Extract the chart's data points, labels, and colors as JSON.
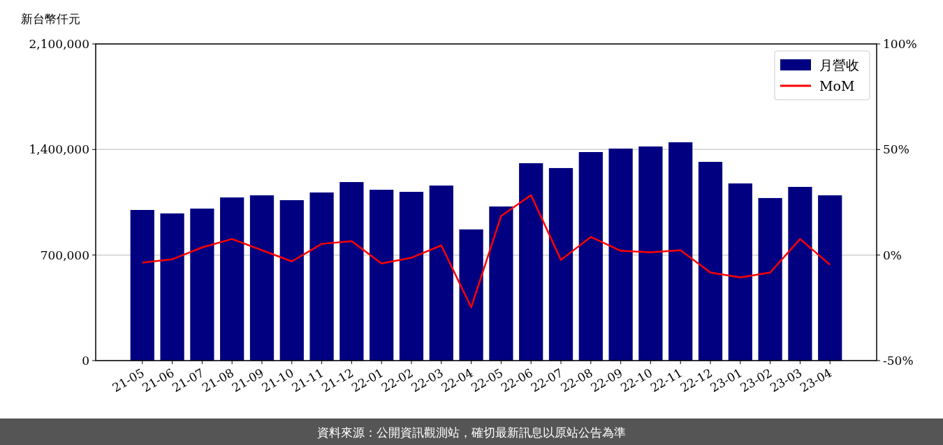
{
  "chart_data": {
    "type": "bar",
    "ylabel": "新台幣仟元",
    "categories": [
      "21-05",
      "21-06",
      "21-07",
      "21-08",
      "21-09",
      "21-10",
      "21-11",
      "21-12",
      "22-01",
      "22-02",
      "22-03",
      "22-04",
      "22-05",
      "22-06",
      "22-07",
      "22-08",
      "22-09",
      "22-10",
      "22-11",
      "22-12",
      "23-01",
      "23-02",
      "23-03",
      "23-04"
    ],
    "series": [
      {
        "name": "月營收",
        "color": "#000080",
        "values": [
          999000,
          976000,
          1008000,
          1082000,
          1096000,
          1064000,
          1115000,
          1184000,
          1133000,
          1119000,
          1161000,
          870000,
          1022000,
          1309000,
          1277000,
          1383000,
          1406000,
          1420000,
          1448000,
          1318000,
          1175000,
          1078000,
          1152000,
          1096000
        ]
      },
      {
        "name": "MoM",
        "type": "line",
        "axis": "y2",
        "color": "#ff0000",
        "values": [
          -3.6,
          -2.0,
          3.6,
          7.6,
          2.3,
          -3.0,
          5.3,
          6.6,
          -4.0,
          -1.3,
          4.6,
          -24.8,
          18.5,
          28.4,
          -2.3,
          8.6,
          2.0,
          1.3,
          2.3,
          -8.3,
          -10.6,
          -8.3,
          7.6,
          -4.6
        ]
      }
    ],
    "ylim": [
      0,
      2100000
    ],
    "yticks": [
      {
        "value": 0,
        "label": "0"
      },
      {
        "value": 700000,
        "label": "700,000"
      },
      {
        "value": 1400000,
        "label": "1,400,000"
      },
      {
        "value": 2100000,
        "label": "2,100,000"
      }
    ],
    "y2lim": [
      -50,
      100
    ],
    "y2ticks": [
      {
        "value": -50,
        "label": "-50%"
      },
      {
        "value": 0,
        "label": "0%"
      },
      {
        "value": 50,
        "label": "50%"
      },
      {
        "value": 100,
        "label": "100%"
      }
    ],
    "grid": "y",
    "legend": "top right",
    "annotations": [
      "資料來源：公開資訊觀測站，確切最新訊息以原站公告為準"
    ]
  }
}
